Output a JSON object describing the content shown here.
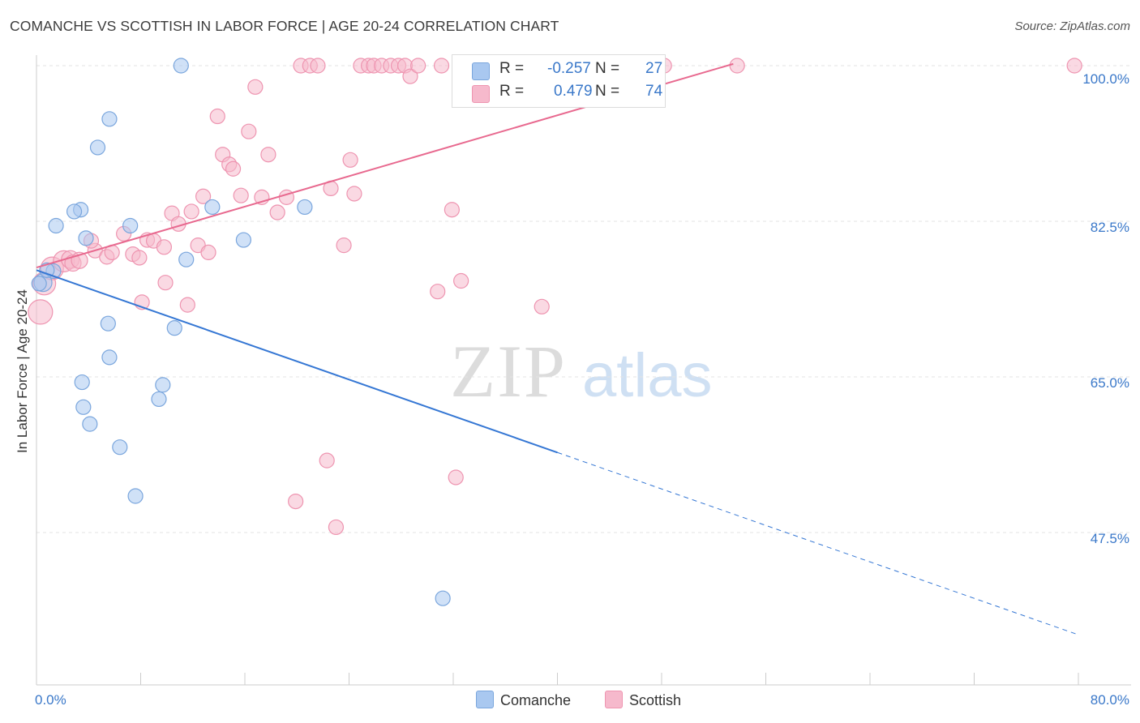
{
  "title": "COMANCHE VS SCOTTISH IN LABOR FORCE | AGE 20-24 CORRELATION CHART",
  "source": "Source: ZipAtlas.com",
  "watermark": {
    "zip": "ZIP",
    "atlas": "atlas"
  },
  "colors": {
    "comanche_fill": "#a9c8f0",
    "comanche_stroke": "#7aa6dd",
    "comanche_line": "#3577d4",
    "scottish_fill": "#f6b9cc",
    "scottish_stroke": "#ee94b0",
    "scottish_line": "#e8698f",
    "tick_label": "#3a78c9",
    "grid": "#e3e3e3"
  },
  "legend": {
    "comanche": {
      "r_label": "R =",
      "r_value": "-0.257",
      "n_label": "N =",
      "n_value": "27"
    },
    "scottish": {
      "r_label": "R =",
      "r_value": "0.479",
      "n_label": "N =",
      "n_value": "74"
    }
  },
  "bottom_legend": {
    "comanche": "Comanche",
    "scottish": "Scottish"
  },
  "chart_data": {
    "type": "scatter",
    "title": "COMANCHE VS SCOTTISH IN LABOR FORCE | AGE 20-24 CORRELATION CHART",
    "xlabel": "",
    "ylabel": "In Labor Force | Age 20-24",
    "xlim": [
      0,
      80
    ],
    "ylim": [
      28,
      100.5
    ],
    "x_tick_labels": [
      "0.0%",
      "80.0%"
    ],
    "y_ticks": [
      47.5,
      65.0,
      82.5,
      100.0
    ],
    "y_tick_labels": [
      "47.5%",
      "65.0%",
      "82.5%",
      "100.0%"
    ],
    "grid": "horizontal dashed",
    "legend_position": "top-center",
    "series": [
      {
        "name": "Comanche",
        "r": -0.257,
        "n": 27,
        "trend": {
          "x0": 0,
          "y0": 77.0,
          "x1": 40,
          "y1": 56.5,
          "dashed_to_x": 80,
          "dashed_to_y": 36.0
        },
        "points": [
          [
            0.5,
            75.6,
            11
          ],
          [
            1.3,
            76.9,
            9
          ],
          [
            1.5,
            82.0,
            9
          ],
          [
            3.4,
            83.8,
            9
          ],
          [
            2.9,
            83.6,
            9
          ],
          [
            3.5,
            64.4,
            9
          ],
          [
            4.7,
            90.8,
            9
          ],
          [
            3.6,
            61.6,
            9
          ],
          [
            3.8,
            80.6,
            9
          ],
          [
            5.6,
            94.0,
            9
          ],
          [
            4.1,
            59.7,
            9
          ],
          [
            5.5,
            71.0,
            9
          ],
          [
            5.6,
            67.2,
            9
          ],
          [
            6.4,
            57.1,
            9
          ],
          [
            7.2,
            82.0,
            9
          ],
          [
            7.6,
            51.6,
            9
          ],
          [
            9.4,
            62.5,
            9
          ],
          [
            9.7,
            64.1,
            9
          ],
          [
            10.6,
            70.5,
            9
          ],
          [
            11.1,
            100.0,
            9
          ],
          [
            11.5,
            78.2,
            9
          ],
          [
            13.5,
            84.1,
            9
          ],
          [
            15.9,
            80.4,
            9
          ],
          [
            20.6,
            84.1,
            9
          ],
          [
            31.2,
            40.1,
            9
          ],
          [
            0.2,
            75.5,
            9
          ],
          [
            0.8,
            77.0,
            9
          ]
        ]
      },
      {
        "name": "Scottish",
        "r": 0.479,
        "n": 74,
        "trend": {
          "x0": 0,
          "y0": 77.3,
          "x1": 53.5,
          "y1": 100.2
        },
        "points": [
          [
            0.3,
            72.3,
            15
          ],
          [
            0.6,
            75.5,
            14
          ],
          [
            1.2,
            77.2,
            14
          ],
          [
            2.1,
            78.0,
            13
          ],
          [
            2.6,
            78.2,
            11
          ],
          [
            2.8,
            77.8,
            10
          ],
          [
            3.3,
            78.1,
            10
          ],
          [
            4.5,
            79.2,
            9
          ],
          [
            4.2,
            80.3,
            9
          ],
          [
            5.4,
            78.5,
            9
          ],
          [
            5.8,
            79.0,
            9
          ],
          [
            6.7,
            81.1,
            9
          ],
          [
            7.4,
            78.8,
            9
          ],
          [
            7.9,
            78.4,
            9
          ],
          [
            8.1,
            73.4,
            9
          ],
          [
            8.5,
            80.4,
            9
          ],
          [
            9.0,
            80.3,
            9
          ],
          [
            9.8,
            79.6,
            9
          ],
          [
            9.9,
            75.6,
            9
          ],
          [
            10.4,
            83.4,
            9
          ],
          [
            10.9,
            82.2,
            9
          ],
          [
            11.6,
            73.1,
            9
          ],
          [
            11.9,
            83.6,
            9
          ],
          [
            12.4,
            79.8,
            9
          ],
          [
            12.8,
            85.3,
            9
          ],
          [
            13.2,
            79.0,
            9
          ],
          [
            13.9,
            94.3,
            9
          ],
          [
            14.3,
            90.0,
            9
          ],
          [
            14.8,
            88.9,
            9
          ],
          [
            15.1,
            88.4,
            9
          ],
          [
            15.7,
            85.4,
            9
          ],
          [
            16.3,
            92.6,
            9
          ],
          [
            16.8,
            97.6,
            9
          ],
          [
            17.3,
            85.2,
            9
          ],
          [
            17.8,
            90.0,
            9
          ],
          [
            18.5,
            83.5,
            9
          ],
          [
            19.2,
            85.2,
            9
          ],
          [
            19.9,
            51.0,
            9
          ],
          [
            20.3,
            100.0,
            9
          ],
          [
            21.0,
            100.0,
            9
          ],
          [
            21.6,
            100.0,
            9
          ],
          [
            22.3,
            55.6,
            9
          ],
          [
            22.6,
            86.2,
            9
          ],
          [
            23.0,
            48.1,
            9
          ],
          [
            23.6,
            79.8,
            9
          ],
          [
            24.1,
            89.4,
            9
          ],
          [
            24.4,
            85.6,
            9
          ],
          [
            24.9,
            100.0,
            9
          ],
          [
            25.5,
            100.0,
            9
          ],
          [
            25.9,
            100.0,
            9
          ],
          [
            26.5,
            100.0,
            9
          ],
          [
            27.2,
            100.0,
            9
          ],
          [
            27.8,
            100.0,
            9
          ],
          [
            28.3,
            100.0,
            9
          ],
          [
            28.7,
            98.8,
            9
          ],
          [
            29.3,
            100.0,
            9
          ],
          [
            30.8,
            74.6,
            9
          ],
          [
            31.1,
            100.0,
            9
          ],
          [
            32.2,
            53.7,
            9
          ],
          [
            31.9,
            83.8,
            9
          ],
          [
            32.6,
            75.8,
            9
          ],
          [
            33.6,
            100.0,
            9
          ],
          [
            34.1,
            100.0,
            9
          ],
          [
            35.0,
            100.0,
            9
          ],
          [
            36.0,
            100.0,
            9
          ],
          [
            38.8,
            72.9,
            9
          ],
          [
            40.2,
            100.0,
            9
          ],
          [
            41.5,
            100.0,
            9
          ],
          [
            42.3,
            100.0,
            9
          ],
          [
            44.1,
            100.0,
            9
          ],
          [
            46.8,
            100.0,
            9
          ],
          [
            48.2,
            100.0,
            9
          ],
          [
            53.8,
            100.0,
            9
          ],
          [
            79.7,
            100.0,
            9
          ]
        ]
      }
    ]
  }
}
